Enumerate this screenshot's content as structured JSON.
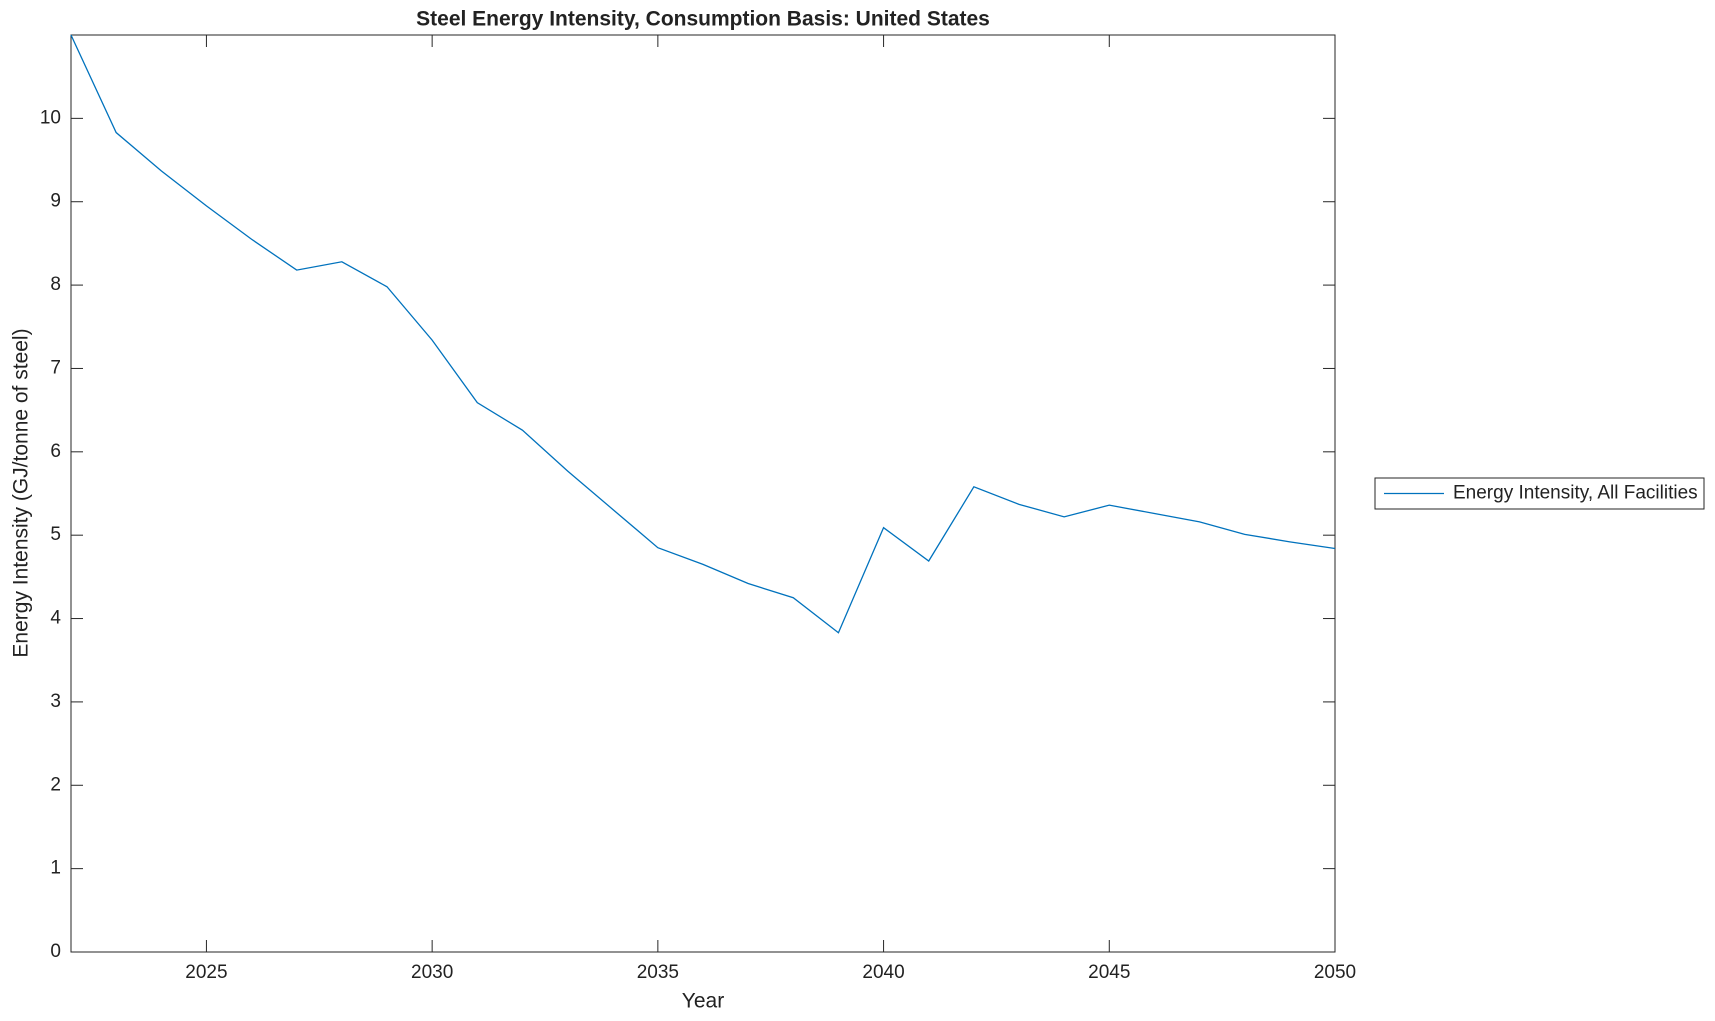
{
  "chart_data": {
    "type": "line",
    "title": "Steel Energy Intensity, Consumption Basis: United States",
    "x_label": "Year",
    "y_label": "Energy Intensity (GJ/tonne of steel)",
    "x": [
      2022,
      2023,
      2024,
      2025,
      2026,
      2027,
      2028,
      2029,
      2030,
      2031,
      2032,
      2033,
      2034,
      2035,
      2036,
      2037,
      2038,
      2039,
      2040,
      2041,
      2042,
      2043,
      2044,
      2045,
      2046,
      2047,
      2048,
      2049,
      2050
    ],
    "series": [
      {
        "name": "Energy Intensity, All Facilities",
        "color": "#0072bd",
        "values": [
          11,
          9.83,
          9.37,
          8.95,
          8.55,
          8.18,
          8.28,
          7.98,
          7.34,
          6.59,
          6.26,
          5.77,
          5.31,
          4.85,
          4.65,
          4.42,
          4.25,
          3.83,
          5.09,
          4.69,
          5.58,
          5.37,
          5.22,
          5.36,
          5.26,
          5.16,
          5.01,
          4.92,
          4.84
        ]
      }
    ],
    "xlim": [
      2022,
      2050
    ],
    "xticks": [
      2025,
      2030,
      2035,
      2040,
      2045,
      2050
    ],
    "ylim": [
      0,
      11
    ],
    "yticks": [
      0,
      1,
      2,
      3,
      4,
      5,
      6,
      7,
      8,
      9,
      10
    ],
    "grid": false,
    "legend": "outside-right"
  }
}
